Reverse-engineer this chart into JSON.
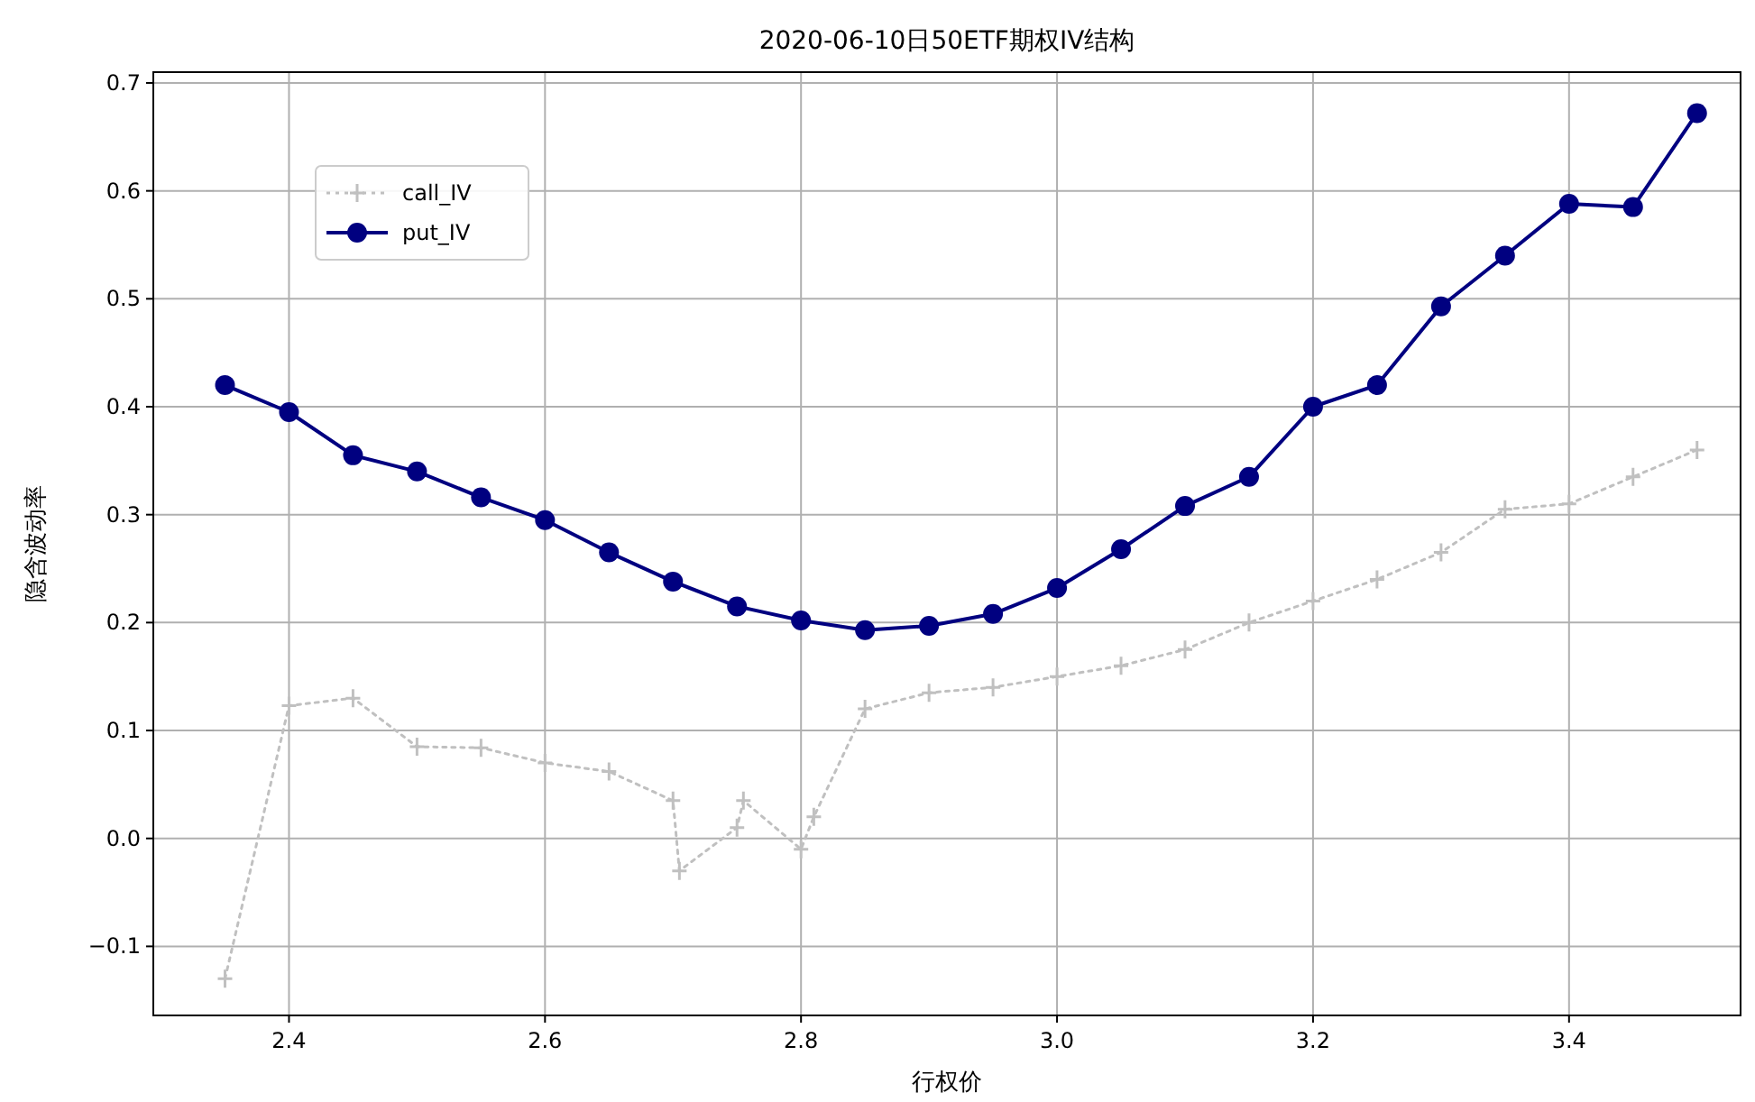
{
  "chart_data": {
    "type": "line",
    "title": "2020-06-10日50ETF期权IV结构",
    "xlabel": "行权价",
    "ylabel": "隐含波动率",
    "xlim": [
      2.294,
      3.534
    ],
    "ylim": [
      -0.164,
      0.71
    ],
    "xticks": [
      2.4,
      2.6,
      2.8,
      {
        "value": 3,
        "label": "3.0"
      },
      3.2,
      3.4
    ],
    "yticks": [
      -0.1,
      {
        "value": 0,
        "label": "0.0"
      },
      0.1,
      0.2,
      0.3,
      0.4,
      0.5,
      0.6,
      0.7
    ],
    "grid": true,
    "legend": "top left",
    "series": [
      {
        "name": "call_IV",
        "color": "#c0c0c0",
        "marker": "cross",
        "line_style": "dotted",
        "x": [
          2.35,
          2.4,
          2.45,
          2.5,
          2.55,
          2.6,
          2.65,
          2.7,
          2.705,
          2.75,
          2.755,
          2.8,
          2.81,
          2.85,
          2.9,
          2.95,
          3.0,
          3.05,
          3.1,
          3.15,
          3.2,
          3.25,
          3.3,
          3.35,
          3.4,
          3.45,
          3.5
        ],
        "values": [
          -0.13,
          0.123,
          0.13,
          0.085,
          0.084,
          0.07,
          0.062,
          0.035,
          -0.03,
          0.01,
          0.035,
          -0.01,
          0.02,
          0.12,
          0.135,
          0.14,
          0.15,
          0.16,
          0.175,
          0.2,
          0.22,
          0.24,
          0.265,
          0.305,
          0.31,
          0.335,
          0.36
        ]
      },
      {
        "name": "put_IV",
        "color": "#000080",
        "marker": "circle",
        "line_style": "solid",
        "x": [
          2.35,
          2.4,
          2.45,
          2.5,
          2.55,
          2.6,
          2.65,
          2.7,
          2.75,
          2.8,
          2.85,
          2.9,
          2.95,
          3.0,
          3.05,
          3.1,
          3.15,
          3.2,
          3.25,
          3.3,
          3.35,
          3.4,
          3.45,
          3.5
        ],
        "values": [
          0.42,
          0.395,
          0.355,
          0.34,
          0.316,
          0.295,
          0.265,
          0.238,
          0.215,
          0.202,
          0.193,
          0.197,
          0.208,
          0.232,
          0.268,
          0.308,
          0.335,
          0.4,
          0.42,
          0.493,
          0.54,
          0.588,
          0.585,
          0.672
        ]
      }
    ]
  }
}
